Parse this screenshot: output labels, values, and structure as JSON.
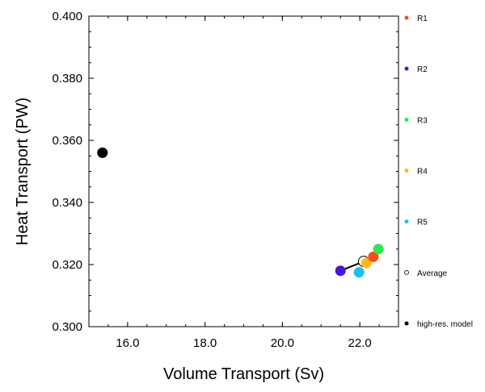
{
  "chart_data": {
    "type": "scatter",
    "xlabel": "Volume Transport (Sv)",
    "ylabel": "Heat Transport (PW)",
    "xlim": [
      15.0,
      23.0
    ],
    "ylim": [
      0.3,
      0.4
    ],
    "x_ticks": [
      16.0,
      18.0,
      20.0,
      22.0
    ],
    "x_tick_labels": [
      "16.0",
      "18.0",
      "20.0",
      "22.0"
    ],
    "y_ticks": [
      0.3,
      0.32,
      0.34,
      0.36,
      0.38,
      0.4
    ],
    "y_tick_labels": [
      "0.300",
      "0.320",
      "0.340",
      "0.360",
      "0.380",
      "0.400"
    ],
    "grid": false,
    "legend_placement": "right",
    "series": [
      {
        "name": "R1",
        "color": "#ff4b14",
        "marker": "filled-circle",
        "x": 22.35,
        "y": 0.3225
      },
      {
        "name": "R2",
        "color": "#4a14e0",
        "marker": "filled-circle",
        "x": 21.5,
        "y": 0.318
      },
      {
        "name": "R3",
        "color": "#2ee84d",
        "marker": "filled-circle",
        "x": 22.48,
        "y": 0.325
      },
      {
        "name": "R4",
        "color": "#ffba1a",
        "marker": "filled-circle",
        "x": 22.17,
        "y": 0.3205
      },
      {
        "name": "R5",
        "color": "#1cc0f0",
        "marker": "filled-circle",
        "x": 21.98,
        "y": 0.3175
      },
      {
        "name": "Average",
        "color": "#000000",
        "marker": "open-circle",
        "x": 22.1,
        "y": 0.321
      },
      {
        "name": "high-res. model",
        "color": "#000000",
        "marker": "filled-circle",
        "x": 15.35,
        "y": 0.356
      }
    ],
    "connector_line": {
      "from_series": "R2",
      "to_series": "Average",
      "color": "#000000"
    }
  }
}
